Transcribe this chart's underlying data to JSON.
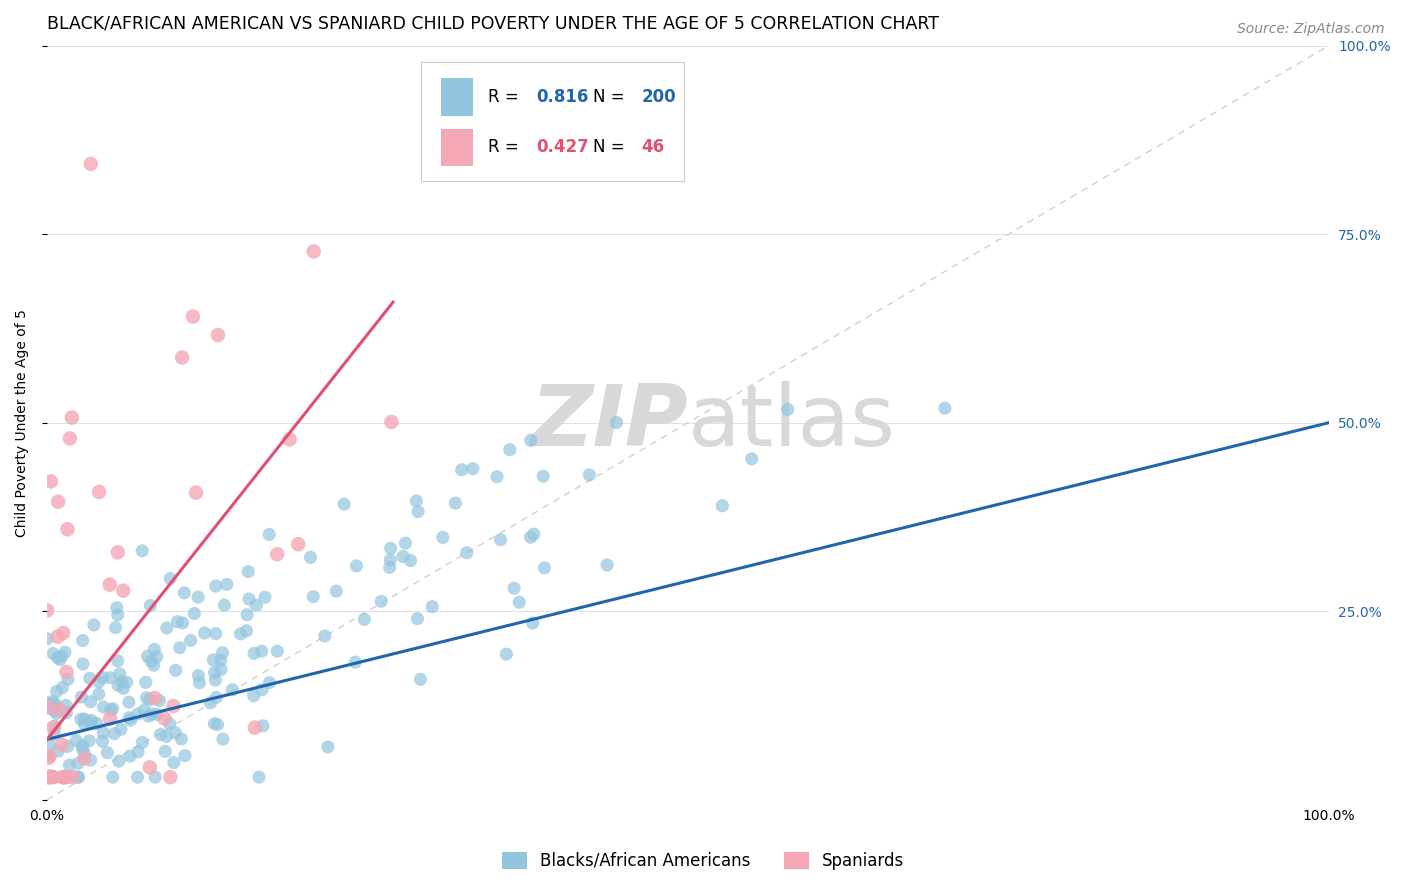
{
  "title": "BLACK/AFRICAN AMERICAN VS SPANIARD CHILD POVERTY UNDER THE AGE OF 5 CORRELATION CHART",
  "source": "Source: ZipAtlas.com",
  "ylabel": "Child Poverty Under the Age of 5",
  "xlim": [
    0,
    1
  ],
  "ylim": [
    0,
    1
  ],
  "ytick_values": [
    0,
    0.25,
    0.5,
    0.75,
    1.0
  ],
  "ytick_labels": [
    "",
    "25.0%",
    "50.0%",
    "75.0%",
    "100.0%"
  ],
  "blue_R": 0.816,
  "blue_N": 200,
  "pink_R": 0.427,
  "pink_N": 46,
  "blue_color": "#92c5de",
  "pink_color": "#f4a7b4",
  "blue_line_color": "#2166ac",
  "pink_line_color": "#e05070",
  "diag_color": "#d0d0d0",
  "watermark_color": "#d8d8d8",
  "legend_blue_label": "Blacks/African Americans",
  "legend_pink_label": "Spaniards",
  "background_color": "#ffffff",
  "grid_color": "#e0e0e0",
  "title_fontsize": 12.5,
  "axis_label_fontsize": 10,
  "tick_fontsize": 10,
  "legend_fontsize": 12,
  "source_fontsize": 10
}
